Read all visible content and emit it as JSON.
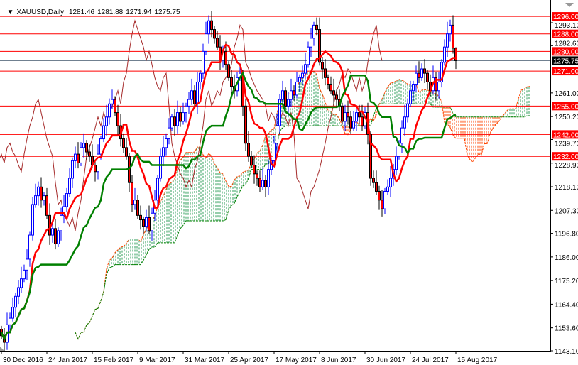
{
  "header": {
    "dropdown_icon": "triangle-down-icon",
    "symbol": "XAUUSD,Daily",
    "open": "1281.46",
    "high": "1281.88",
    "low": "1271.94",
    "close": "1275.75"
  },
  "colors": {
    "bull": "#0000ff",
    "bear": "#ff0000",
    "tenkan": "#ff0000",
    "kijun": "#008000",
    "chikou": "#a52a2a",
    "cloud_up": "#2e9e5a",
    "cloud_down": "#ff4500",
    "level": "#ff0000",
    "current": "#708090"
  },
  "chart_data": {
    "type": "candlestick",
    "title": "XAUUSD,Daily",
    "indicator": "Ichimoku Kinko Hyo (9,26,52)",
    "ylim": [
      1143.1,
      1298
    ],
    "closes": [
      1150,
      1147,
      1155,
      1158,
      1163,
      1168,
      1172,
      1176,
      1180,
      1185,
      1196,
      1210,
      1214,
      1218,
      1212,
      1214,
      1205,
      1196,
      1199,
      1192,
      1198,
      1205,
      1209,
      1215,
      1222,
      1230,
      1233,
      1229,
      1236,
      1238,
      1234,
      1232,
      1228,
      1225,
      1233,
      1240,
      1246,
      1250,
      1256,
      1258,
      1252,
      1246,
      1240,
      1236,
      1232,
      1220,
      1210,
      1212,
      1205,
      1203,
      1200,
      1204,
      1198,
      1206,
      1212,
      1222,
      1232,
      1236,
      1240,
      1245,
      1250,
      1246,
      1252,
      1248,
      1252,
      1255,
      1258,
      1262,
      1256,
      1266,
      1270,
      1280,
      1288,
      1294,
      1290,
      1286,
      1282,
      1276,
      1280,
      1274,
      1268,
      1264,
      1262,
      1268,
      1270,
      1255,
      1238,
      1232,
      1228,
      1224,
      1222,
      1218,
      1221,
      1218,
      1226,
      1230,
      1238,
      1246,
      1258,
      1262,
      1255,
      1258,
      1262,
      1260,
      1266,
      1268,
      1270,
      1274,
      1282,
      1286,
      1292,
      1290,
      1275,
      1272,
      1268,
      1265,
      1262,
      1260,
      1258,
      1255,
      1248,
      1252,
      1250,
      1245,
      1248,
      1252,
      1250,
      1246,
      1252,
      1242,
      1222,
      1220,
      1216,
      1212,
      1208,
      1216,
      1218,
      1222,
      1226,
      1232,
      1238,
      1245,
      1250,
      1256,
      1262,
      1265,
      1270,
      1268,
      1272,
      1270,
      1266,
      1262,
      1268,
      1262,
      1266,
      1275,
      1282,
      1288,
      1292,
      1281.46,
      1275.75
    ],
    "last_bar": {
      "open": 1281.46,
      "high": 1281.88,
      "low": 1271.94,
      "close": 1275.75
    },
    "levels": [
      {
        "value": 1296,
        "label": "1296.00"
      },
      {
        "value": 1288,
        "label": "1288.00"
      },
      {
        "value": 1280,
        "label": "1280.00"
      },
      {
        "value": 1271,
        "label": "1271.00"
      },
      {
        "value": 1255,
        "label": "1255.00"
      },
      {
        "value": 1242,
        "label": "1242.00"
      },
      {
        "value": 1232,
        "label": "1232.00"
      }
    ],
    "current_price": {
      "value": 1275.75,
      "label": "1275.75"
    },
    "y_ticks": [
      {
        "value": 1293.1,
        "label": "1293.10"
      },
      {
        "value": 1282.6,
        "label": "1282.60"
      },
      {
        "value": 1261.0,
        "label": "1261.00"
      },
      {
        "value": 1250.2,
        "label": "1250.20"
      },
      {
        "value": 1239.7,
        "label": "1239.70"
      },
      {
        "value": 1228.9,
        "label": "1228.90"
      },
      {
        "value": 1218.1,
        "label": "1218.10"
      },
      {
        "value": 1207.3,
        "label": "1207.30"
      },
      {
        "value": 1196.8,
        "label": "1196.80"
      },
      {
        "value": 1186.0,
        "label": "1186.00"
      },
      {
        "value": 1175.2,
        "label": "1175.20"
      },
      {
        "value": 1164.4,
        "label": "1164.40"
      },
      {
        "value": 1153.6,
        "label": "1153.60"
      },
      {
        "value": 1143.1,
        "label": "1143.10"
      }
    ],
    "x_ticks": [
      {
        "bar": 0,
        "label": "30 Dec 2016"
      },
      {
        "bar": 16,
        "label": "24 Jan 2017"
      },
      {
        "bar": 32,
        "label": "15 Feb 2017"
      },
      {
        "bar": 48,
        "label": "9 Mar 2017"
      },
      {
        "bar": 64,
        "label": "31 Mar 2017"
      },
      {
        "bar": 80,
        "label": "25 Apr 2017"
      },
      {
        "bar": 96,
        "label": "17 May 2017"
      },
      {
        "bar": 112,
        "label": "8 Jun 2017"
      },
      {
        "bar": 128,
        "label": "30 Jun 2017"
      },
      {
        "bar": 144,
        "label": "24 Jul 2017"
      },
      {
        "bar": 160,
        "label": "15 Aug 2017"
      }
    ]
  }
}
